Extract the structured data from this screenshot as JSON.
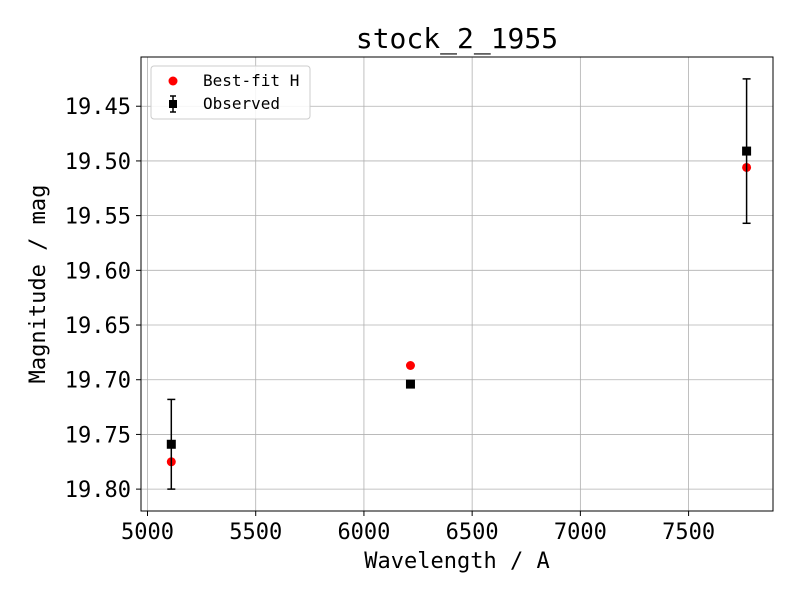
{
  "chart_data": {
    "type": "scatter",
    "title": "stock_2_1955",
    "xlabel": "Wavelength / A",
    "ylabel": "Magnitude / mag",
    "xlim": [
      4970,
      7890
    ],
    "ylim": [
      19.82,
      19.405
    ],
    "y_inverted": true,
    "grid": true,
    "legend_placement": "top-left",
    "xticks": [
      5000,
      5500,
      6000,
      6500,
      7000,
      7500
    ],
    "xtick_labels": [
      "5000",
      "5500",
      "6000",
      "6500",
      "7000",
      "7500"
    ],
    "yticks": [
      19.45,
      19.5,
      19.55,
      19.6,
      19.65,
      19.7,
      19.75,
      19.8
    ],
    "ytick_labels": [
      "19.45",
      "19.50",
      "19.55",
      "19.60",
      "19.65",
      "19.70",
      "19.75",
      "19.80"
    ],
    "series": [
      {
        "name": "Best-fit H",
        "marker": "circle",
        "color": "#ff0000",
        "x": [
          5110,
          6215,
          7768
        ],
        "y": [
          19.775,
          19.687,
          19.506
        ]
      },
      {
        "name": "Observed",
        "marker": "square",
        "color": "#000000",
        "x": [
          5110,
          6215,
          7768
        ],
        "y": [
          19.759,
          19.704,
          19.491
        ],
        "yerr": [
          0.041,
          0.0,
          0.066
        ]
      }
    ]
  }
}
